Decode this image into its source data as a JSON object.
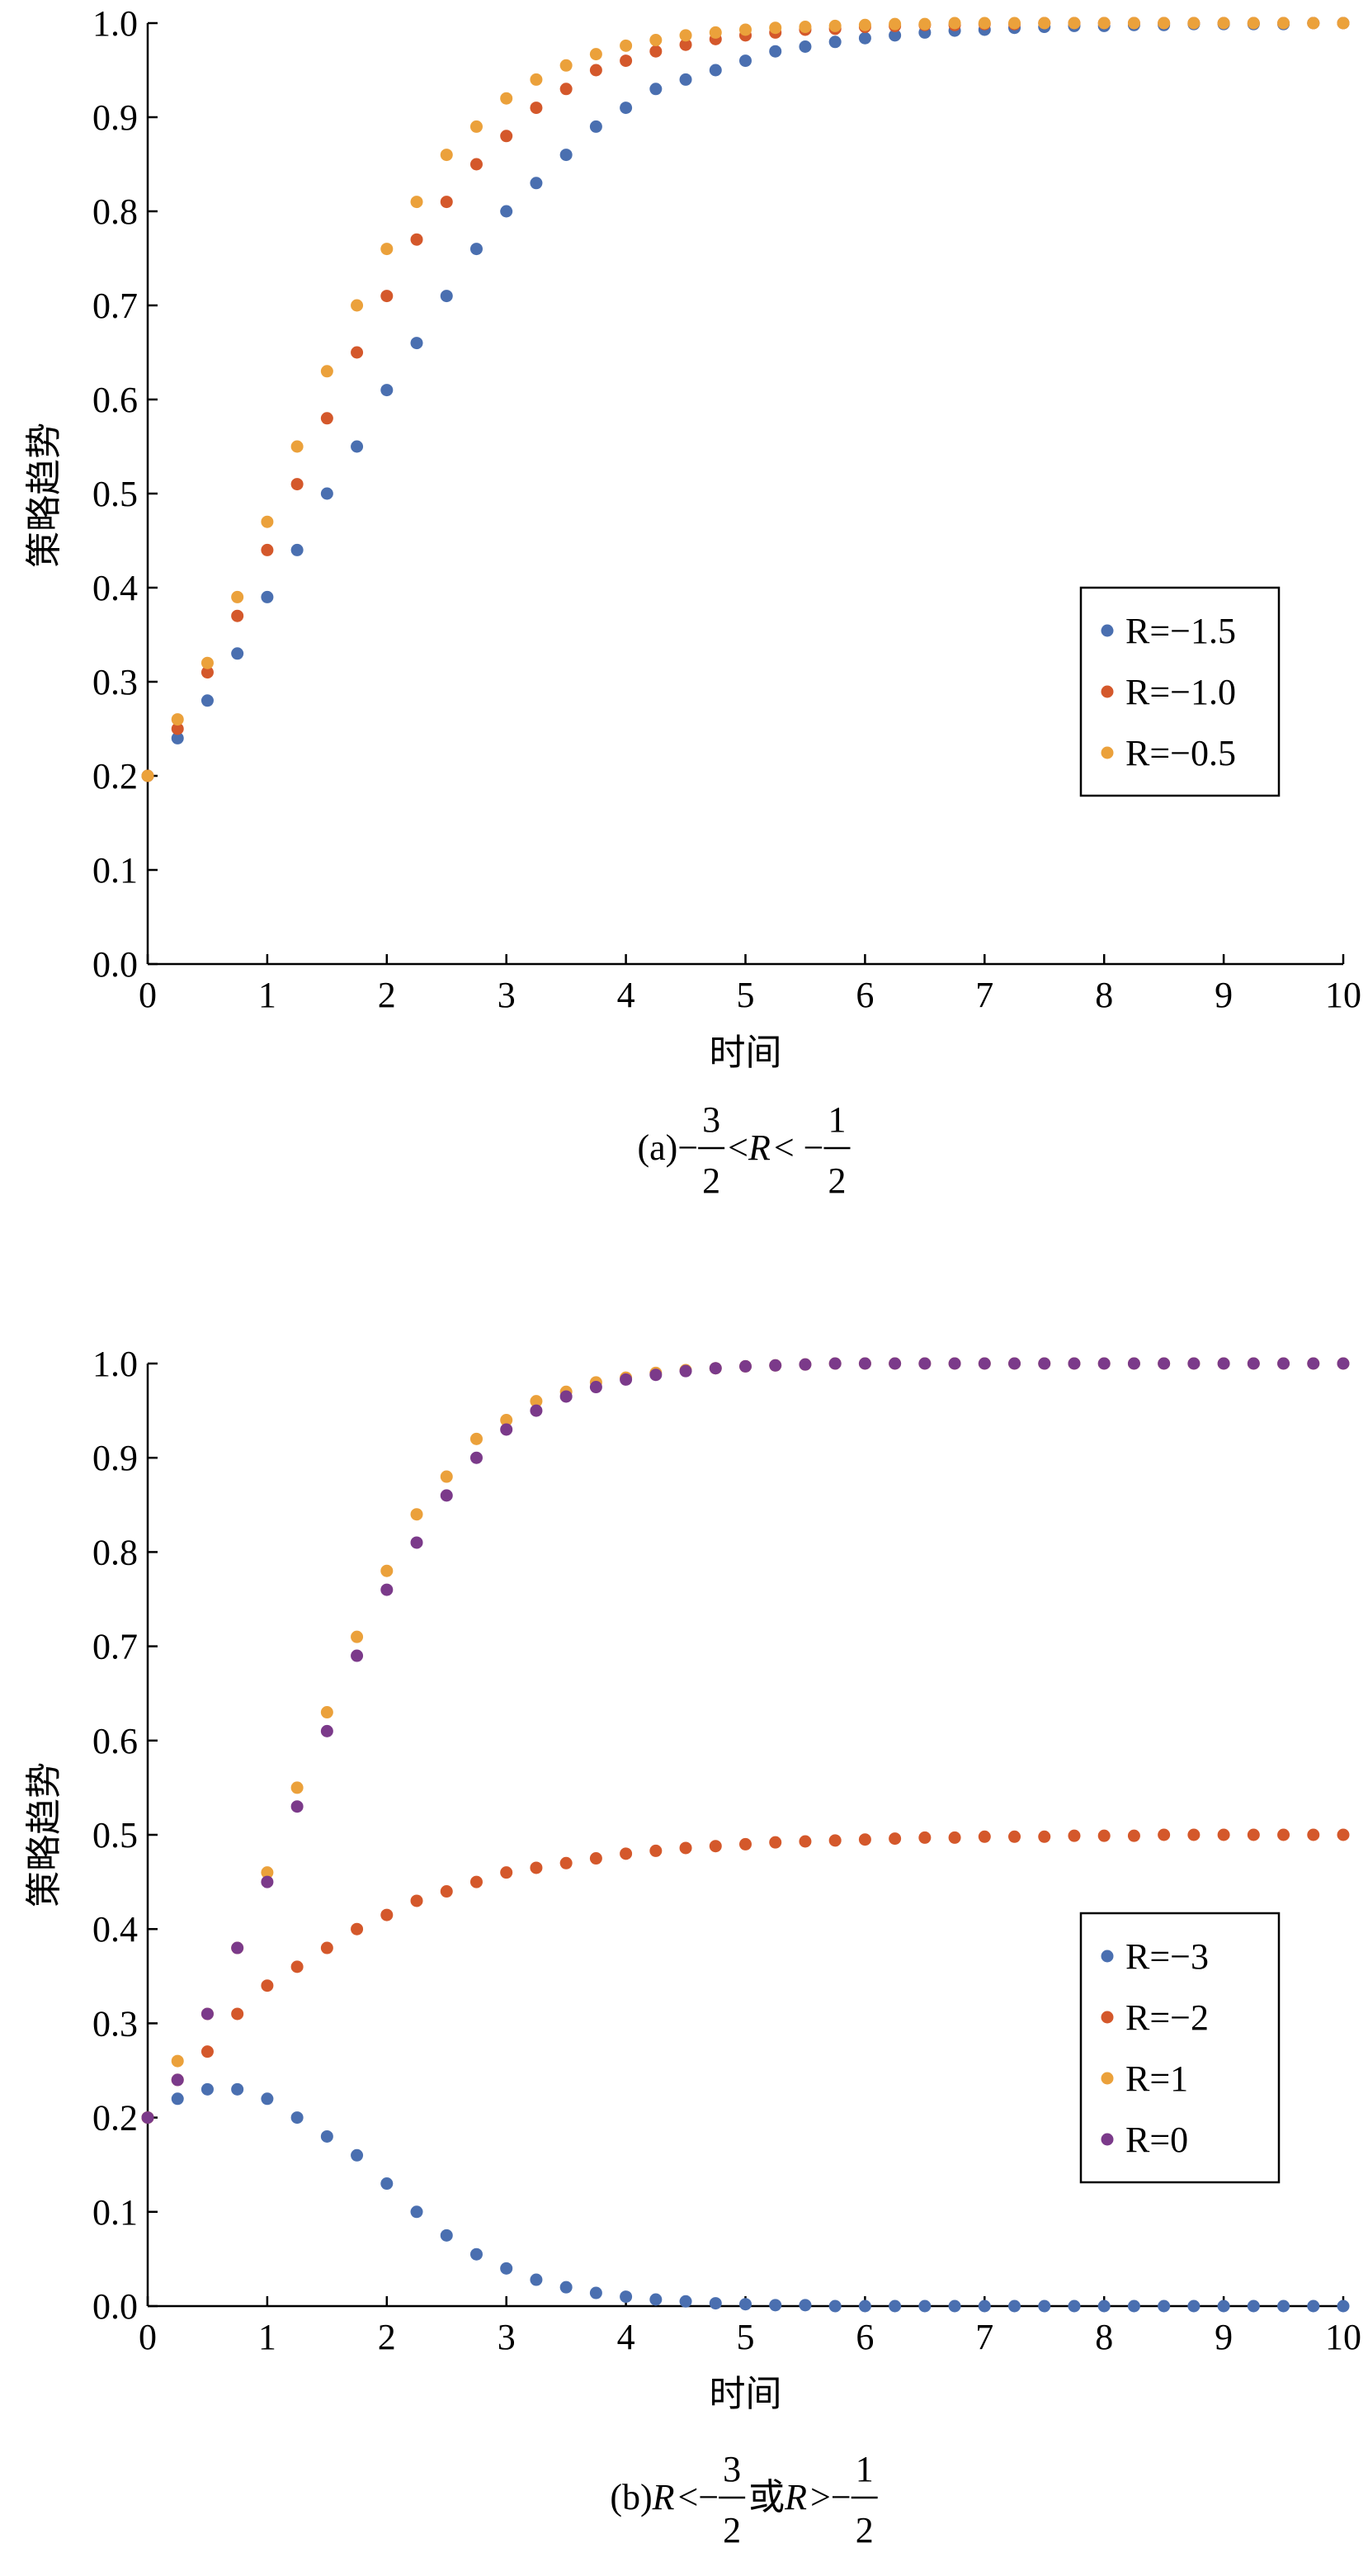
{
  "chart_data": [
    {
      "type": "scatter",
      "x": [
        0,
        0.25,
        0.5,
        0.75,
        1,
        1.25,
        1.5,
        1.75,
        2,
        2.25,
        2.5,
        2.75,
        3,
        3.25,
        3.5,
        3.75,
        4,
        4.25,
        4.5,
        4.75,
        5,
        5.25,
        5.5,
        5.75,
        6,
        6.25,
        6.5,
        6.75,
        7,
        7.25,
        7.5,
        7.75,
        8,
        8.25,
        8.5,
        8.75,
        9,
        9.25,
        9.5,
        9.75,
        10
      ],
      "series": [
        {
          "name": "R=−1.5",
          "color": "#4a6fb0",
          "values": [
            0.2,
            0.24,
            0.28,
            0.33,
            0.39,
            0.44,
            0.5,
            0.55,
            0.61,
            0.66,
            0.71,
            0.76,
            0.8,
            0.83,
            0.86,
            0.89,
            0.91,
            0.93,
            0.94,
            0.95,
            0.96,
            0.97,
            0.975,
            0.98,
            0.984,
            0.987,
            0.99,
            0.992,
            0.993,
            0.995,
            0.996,
            0.997,
            0.997,
            0.998,
            0.998,
            0.999,
            0.999,
            0.999,
            0.999,
            1,
            1
          ]
        },
        {
          "name": "R=−1.0",
          "color": "#d4582b",
          "values": [
            0.2,
            0.25,
            0.31,
            0.37,
            0.44,
            0.51,
            0.58,
            0.65,
            0.71,
            0.77,
            0.81,
            0.85,
            0.88,
            0.91,
            0.93,
            0.95,
            0.96,
            0.97,
            0.977,
            0.983,
            0.987,
            0.99,
            0.993,
            0.994,
            0.996,
            0.997,
            0.998,
            0.998,
            0.999,
            0.999,
            1,
            1,
            1,
            1,
            1,
            1,
            1,
            1,
            1,
            1,
            1
          ]
        },
        {
          "name": "R=−0.5",
          "color": "#eba13b",
          "values": [
            0.2,
            0.26,
            0.32,
            0.39,
            0.47,
            0.55,
            0.63,
            0.7,
            0.76,
            0.81,
            0.86,
            0.89,
            0.92,
            0.94,
            0.955,
            0.967,
            0.976,
            0.982,
            0.987,
            0.99,
            0.993,
            0.995,
            0.996,
            0.997,
            0.998,
            0.999,
            0.999,
            1,
            1,
            1,
            1,
            1,
            1,
            1,
            1,
            1,
            1,
            1,
            1,
            1,
            1
          ]
        }
      ],
      "xlim": [
        0,
        10
      ],
      "ylim": [
        0,
        1
      ],
      "xticks": [
        0,
        1,
        2,
        3,
        4,
        5,
        6,
        7,
        8,
        9,
        10
      ],
      "yticks": [
        {
          "value": 0,
          "label": "0.0"
        },
        {
          "value": 0.1,
          "label": "0.1"
        },
        {
          "value": 0.2,
          "label": "0.2"
        },
        {
          "value": 0.3,
          "label": "0.3"
        },
        {
          "value": 0.4,
          "label": "0.4"
        },
        {
          "value": 0.5,
          "label": "0.5"
        },
        {
          "value": 0.6,
          "label": "0.6"
        },
        {
          "value": 0.7,
          "label": "0.7"
        },
        {
          "value": 0.8,
          "label": "0.8"
        },
        {
          "value": 0.9,
          "label": "0.9"
        },
        {
          "value": 1,
          "label": "1.0"
        }
      ],
      "xlabel": "时间",
      "ylabel": "策略趋势",
      "legend": "center right",
      "caption": [
        "(a)−",
        {
          "num": "3",
          "den": "2"
        },
        " < ",
        {
          "text": "R",
          "style": "italic"
        },
        " < −",
        {
          "num": "1",
          "den": "2"
        }
      ]
    },
    {
      "type": "scatter",
      "x": [
        0,
        0.25,
        0.5,
        0.75,
        1,
        1.25,
        1.5,
        1.75,
        2,
        2.25,
        2.5,
        2.75,
        3,
        3.25,
        3.5,
        3.75,
        4,
        4.25,
        4.5,
        4.75,
        5,
        5.25,
        5.5,
        5.75,
        6,
        6.25,
        6.5,
        6.75,
        7,
        7.25,
        7.5,
        7.75,
        8,
        8.25,
        8.5,
        8.75,
        9,
        9.25,
        9.5,
        9.75,
        10
      ],
      "series": [
        {
          "name": "R=−3",
          "color": "#4a6fb0",
          "values": [
            0.2,
            0.22,
            0.23,
            0.23,
            0.22,
            0.2,
            0.18,
            0.16,
            0.13,
            0.1,
            0.075,
            0.055,
            0.04,
            0.028,
            0.02,
            0.014,
            0.01,
            0.007,
            0.005,
            0.003,
            0.002,
            0.001,
            0.001,
            0,
            0,
            0,
            0,
            0,
            0,
            0,
            0,
            0,
            0,
            0,
            0,
            0,
            0,
            0,
            0,
            0,
            0
          ]
        },
        {
          "name": "R=−2",
          "color": "#d4582b",
          "values": [
            0.2,
            0.24,
            0.27,
            0.31,
            0.34,
            0.36,
            0.38,
            0.4,
            0.415,
            0.43,
            0.44,
            0.45,
            0.46,
            0.465,
            0.47,
            0.475,
            0.48,
            0.483,
            0.486,
            0.488,
            0.49,
            0.492,
            0.493,
            0.494,
            0.495,
            0.496,
            0.497,
            0.497,
            0.498,
            0.498,
            0.498,
            0.499,
            0.499,
            0.499,
            0.5,
            0.5,
            0.5,
            0.5,
            0.5,
            0.5,
            0.5
          ]
        },
        {
          "name": "R=1",
          "color": "#eba13b",
          "values": [
            0.2,
            0.26,
            0.31,
            0.38,
            0.46,
            0.55,
            0.63,
            0.71,
            0.78,
            0.84,
            0.88,
            0.92,
            0.94,
            0.96,
            0.97,
            0.98,
            0.985,
            0.99,
            0.993,
            0.995,
            0.997,
            0.998,
            0.999,
            1,
            1,
            1,
            1,
            1,
            1,
            1,
            1,
            1,
            1,
            1,
            1,
            1,
            1,
            1,
            1,
            1,
            1
          ]
        },
        {
          "name": "R=0",
          "color": "#7b3a8a",
          "values": [
            0.2,
            0.24,
            0.31,
            0.38,
            0.45,
            0.53,
            0.61,
            0.69,
            0.76,
            0.81,
            0.86,
            0.9,
            0.93,
            0.95,
            0.965,
            0.975,
            0.983,
            0.988,
            0.992,
            0.995,
            0.997,
            0.998,
            0.999,
            1,
            1,
            1,
            1,
            1,
            1,
            1,
            1,
            1,
            1,
            1,
            1,
            1,
            1,
            1,
            1,
            1,
            1
          ]
        }
      ],
      "xlim": [
        0,
        10
      ],
      "ylim": [
        0,
        1
      ],
      "xticks": [
        0,
        1,
        2,
        3,
        4,
        5,
        6,
        7,
        8,
        9,
        10
      ],
      "yticks": [
        {
          "value": 0,
          "label": "0.0"
        },
        {
          "value": 0.1,
          "label": "0.1"
        },
        {
          "value": 0.2,
          "label": "0.2"
        },
        {
          "value": 0.3,
          "label": "0.3"
        },
        {
          "value": 0.4,
          "label": "0.4"
        },
        {
          "value": 0.5,
          "label": "0.5"
        },
        {
          "value": 0.6,
          "label": "0.6"
        },
        {
          "value": 0.7,
          "label": "0.7"
        },
        {
          "value": 0.8,
          "label": "0.8"
        },
        {
          "value": 0.9,
          "label": "0.9"
        },
        {
          "value": 1,
          "label": "1.0"
        }
      ],
      "xlabel": "时间",
      "ylabel": "策略趋势",
      "legend": "lower right",
      "caption": [
        "(b)",
        {
          "text": "R",
          "style": "italic"
        },
        " <−",
        {
          "num": "3",
          "den": "2"
        },
        " 或",
        {
          "text": "R",
          "style": "italic"
        },
        " >−",
        {
          "num": "1",
          "den": "2"
        }
      ]
    }
  ]
}
